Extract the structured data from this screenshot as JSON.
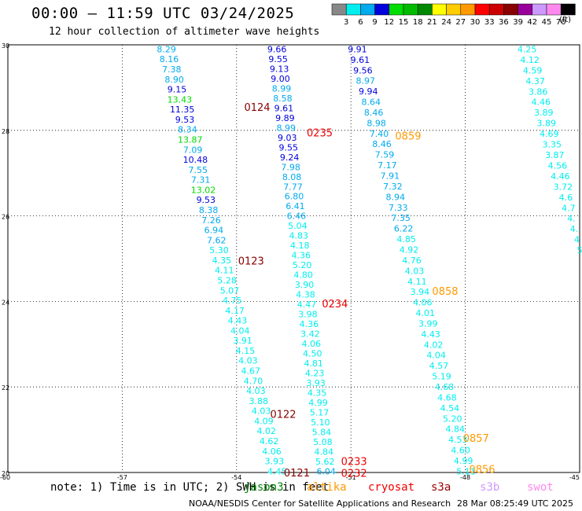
{
  "header": {
    "title": "00:00 – 11:59 UTC 03/24/2025",
    "subtitle": "12 hour collection of altimeter wave heights"
  },
  "color_scale": {
    "colors": [
      "#888888",
      "#00eeee",
      "#00aaee",
      "#0000dd",
      "#00dd00",
      "#00bb00",
      "#008800",
      "#ffff00",
      "#ffcc00",
      "#ff9900",
      "#ff0000",
      "#cc0000",
      "#880000",
      "#990099",
      "#cc99ff",
      "#ff88ee",
      "#000000"
    ],
    "labels": [
      "3",
      "6",
      "9",
      "12",
      "15",
      "18",
      "21",
      "24",
      "27",
      "30",
      "33",
      "36",
      "39",
      "42",
      "45",
      "70"
    ],
    "unit": "(ft)"
  },
  "footer": {
    "note": "note: 1) Time is in UTC; 2) SWH is in feet",
    "satellites": [
      {
        "name": "jason3",
        "color": "#008800"
      },
      {
        "name": "altika",
        "color": "#ff9900"
      },
      {
        "name": "cryosat",
        "color": "#ee0000"
      },
      {
        "name": "s3a",
        "color": "#990000"
      },
      {
        "name": "s3b",
        "color": "#cc99ff"
      },
      {
        "name": "swot",
        "color": "#ff88ee"
      }
    ],
    "credit": "NOAA/NESDIS Center for Satellite Applications and Research",
    "timestamp": "28 Mar 08:25:49 UTC 2025"
  },
  "chart_data": {
    "type": "scatter",
    "title": "00:00 – 11:59 UTC 03/24/2025",
    "xlim": [
      -60,
      -45
    ],
    "ylim": [
      20,
      30
    ],
    "x_ticks": [
      "-60",
      "-57",
      "-54",
      "-51",
      "-48",
      "-45"
    ],
    "y_ticks": [
      "20",
      "22",
      "24",
      "26",
      "28",
      "30"
    ],
    "grid": true,
    "pass_labels": [
      {
        "text": "0124",
        "x": -53.8,
        "y": 28.55,
        "color": "#880000"
      },
      {
        "text": "0123",
        "x": -53.96,
        "y": 24.95,
        "color": "#880000"
      },
      {
        "text": "0122",
        "x": -53.12,
        "y": 21.37,
        "color": "#880000"
      },
      {
        "text": "0121",
        "x": -52.76,
        "y": 20.0,
        "color": "#880000"
      },
      {
        "text": "0235",
        "x": -52.16,
        "y": 27.95,
        "color": "#ee0000"
      },
      {
        "text": "0234",
        "x": -51.76,
        "y": 23.95,
        "color": "#ee0000"
      },
      {
        "text": "0233",
        "x": -51.26,
        "y": 20.27,
        "color": "#ee0000"
      },
      {
        "text": "0232",
        "x": -51.26,
        "y": 19.99,
        "color": "#ee0000"
      },
      {
        "text": "0859",
        "x": -49.84,
        "y": 27.88,
        "color": "#ff9900"
      },
      {
        "text": "0858",
        "x": -48.87,
        "y": 24.25,
        "color": "#ff9900"
      },
      {
        "text": "0857",
        "x": -48.06,
        "y": 20.81,
        "color": "#ff9900"
      },
      {
        "text": "0856",
        "x": -47.9,
        "y": 20.08,
        "color": "#ff9900"
      }
    ],
    "tracks": [
      {
        "x0": -55.84,
        "y0": 29.9,
        "x1": -52.94,
        "y1": 20.03,
        "values": [
          "8.29",
          "8.16",
          "7.38",
          "8.90",
          "9.15",
          "13.43",
          "11.35",
          "9.53",
          "8.34",
          "13.87",
          "7.09",
          "10.48",
          "7.55",
          "7.31",
          "13.02",
          "9.53",
          "8.38",
          "7.26",
          "6.94",
          "7.62",
          "5.30",
          "4.35",
          "4.11",
          "5.28",
          "5.07",
          "4.75",
          "4.17",
          "4.43",
          "4.04",
          "3.91",
          "4.15",
          "4.03",
          "4.67",
          "4.70",
          "4.03",
          "3.88",
          "4.03",
          "4.09",
          "4.02",
          "4.62",
          "4.06",
          "3.93",
          "4.45"
        ]
      },
      {
        "x0": -52.94,
        "y0": 29.9,
        "x1": -51.65,
        "y1": 20.03,
        "values": [
          "9.66",
          "9.55",
          "9.13",
          "9.00",
          "8.99",
          "8.58",
          "9.61",
          "9.89",
          "8.99",
          "9.03",
          "9.55",
          "9.24",
          "7.98",
          "8.08",
          "7.77",
          "6.80",
          "6.41",
          "6.46",
          "5.04",
          "4.83",
          "4.18",
          "4.36",
          "5.20",
          "4.80",
          "3.90",
          "4.38",
          "4.47",
          "3.98",
          "4.36",
          "3.42",
          "4.06",
          "4.50",
          "4.81",
          "4.23",
          "3.93",
          "4.35",
          "4.99",
          "5.17",
          "5.10",
          "5.84",
          "5.08",
          "4.84",
          "5.62",
          "6.04"
        ]
      },
      {
        "x0": -50.83,
        "y0": 29.9,
        "x1": -47.98,
        "y1": 20.03,
        "values": [
          "9.91",
          "9.61",
          "9.56",
          "8.97",
          "9.94",
          "8.64",
          "8.46",
          "8.98",
          "7.40",
          "8.46",
          "7.59",
          "7.17",
          "7.91",
          "7.32",
          "8.94",
          "7.33",
          "7.35",
          "6.22",
          "4.85",
          "4.92",
          "4.76",
          "4.03",
          "4.11",
          "3.94",
          "4.06",
          "4.01",
          "3.99",
          "4.43",
          "4.02",
          "4.04",
          "4.57",
          "5.19",
          "4.68",
          "4.68",
          "4.54",
          "5.20",
          "4.84",
          "4.53",
          "4.60",
          "4.99",
          "5.11"
        ]
      },
      {
        "x0": -46.38,
        "y0": 29.9,
        "x1": -45.0,
        "y1": 25.2,
        "values": [
          "4.25",
          "4.12",
          "4.59",
          "4.37",
          "3.86",
          "4.46",
          "3.89",
          "3.89",
          "4.69",
          "3.35",
          "3.87",
          "4.56",
          "4.46",
          "3.72",
          "4.6",
          "4.7",
          "4.",
          "4.",
          "4",
          "5"
        ]
      }
    ]
  }
}
